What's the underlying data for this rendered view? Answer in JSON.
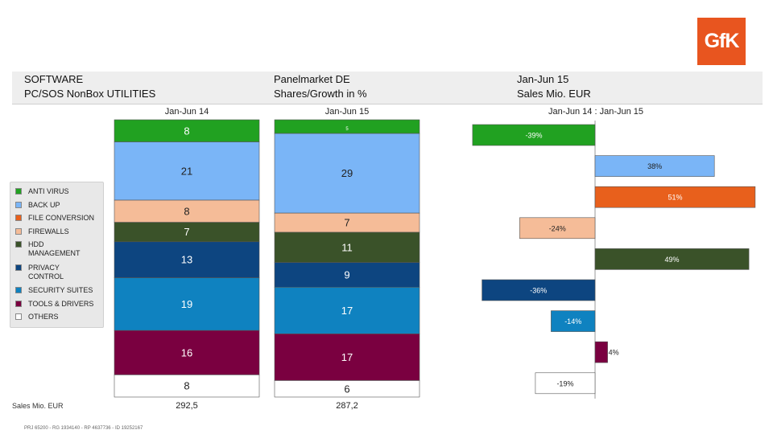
{
  "logo_text": "GfK",
  "header": {
    "category": "SOFTWARE",
    "subcategory": "PC/SOS NonBox UTILITIES",
    "market": "Panelmarket DE",
    "measure": "Shares/Growth in %",
    "period": "Jan-Jun 15",
    "unit": "Sales Mio. EUR"
  },
  "legend": [
    {
      "label": "ANTI VIRUS",
      "color": "#21a121"
    },
    {
      "label": "BACK UP",
      "color": "#7ab5f7"
    },
    {
      "label": "FILE CONVERSION",
      "color": "#e8601c"
    },
    {
      "label": "FIREWALLS",
      "color": "#f5bc98"
    },
    {
      "label": "HDD MANAGEMENT",
      "color": "#3a5229"
    },
    {
      "label": "PRIVACY CONTROL",
      "color": "#0d4580"
    },
    {
      "label": "SECURITY SUITES",
      "color": "#0f82c0"
    },
    {
      "label": "TOOLS & DRIVERS",
      "color": "#7a0040"
    },
    {
      "label": "OTHERS",
      "color": "#ffffff"
    }
  ],
  "chart_data": [
    {
      "type": "bar",
      "stacked": true,
      "title": "Jan-Jun 14",
      "categories": [
        "ANTI VIRUS",
        "BACK UP",
        "FILE CONVERSION",
        "FIREWALLS",
        "HDD MANAGEMENT",
        "PRIVACY CONTROL",
        "SECURITY SUITES",
        "TOOLS & DRIVERS",
        "OTHERS"
      ],
      "labels": [
        "8",
        "21",
        "",
        "8",
        "7",
        "13",
        "19",
        "16",
        "8"
      ],
      "values": [
        8,
        21,
        0,
        8,
        7,
        13,
        19,
        16,
        8
      ],
      "total_label": "Sales Mio. EUR",
      "total": "292,5"
    },
    {
      "type": "bar",
      "stacked": true,
      "title": "Jan-Jun 15",
      "categories": [
        "ANTI VIRUS",
        "BACK UP",
        "FILE CONVERSION",
        "FIREWALLS",
        "HDD MANAGEMENT",
        "PRIVACY CONTROL",
        "SECURITY SUITES",
        "TOOLS & DRIVERS",
        "OTHERS"
      ],
      "labels": [
        "5",
        "29",
        "",
        "7",
        "11",
        "9",
        "17",
        "17",
        "6"
      ],
      "values": [
        5,
        29,
        0,
        7,
        11,
        9,
        17,
        17,
        6
      ],
      "total": "287,2"
    },
    {
      "type": "bar",
      "orientation": "horizontal",
      "title": "Jan-Jun 14 : Jan-Jun 15",
      "categories": [
        "ANTI VIRUS",
        "BACK UP",
        "FILE CONVERSION",
        "FIREWALLS",
        "HDD MANAGEMENT",
        "PRIVACY CONTROL",
        "SECURITY SUITES",
        "TOOLS & DRIVERS",
        "OTHERS"
      ],
      "values": [
        -39,
        38,
        51,
        -24,
        49,
        -36,
        -14,
        4,
        -19
      ],
      "labels": [
        "-39%",
        "38%",
        "51%",
        "-24%",
        "49%",
        "-36%",
        "-14%",
        "4%",
        "-19%"
      ]
    }
  ],
  "footnote": "PRJ 65200 - RG 1934140 - RP 4637736 - ID 19252167"
}
